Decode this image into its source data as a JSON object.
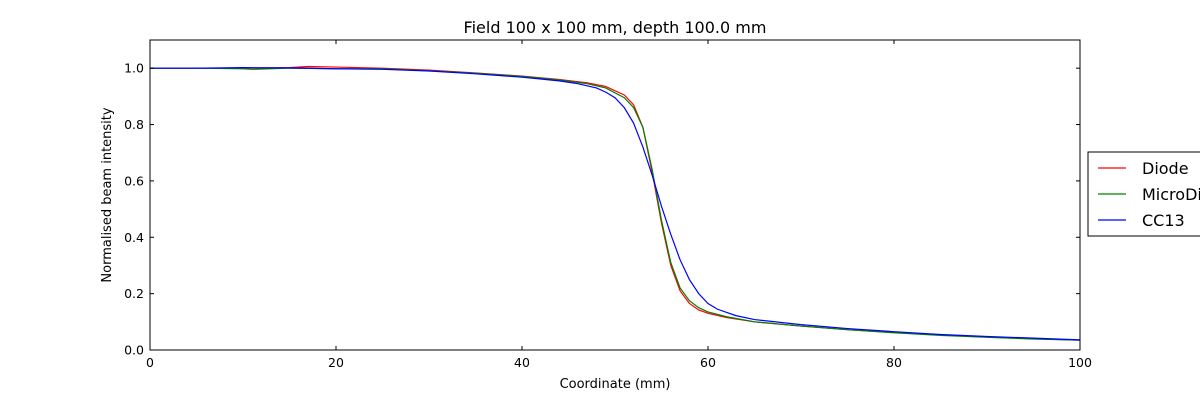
{
  "chart_data": {
    "type": "line",
    "title": "Field 100 x 100 mm, depth 100.0 mm",
    "xlabel": "Coordinate (mm)",
    "ylabel": "Normalised beam intensity",
    "xlim": [
      0,
      100
    ],
    "ylim": [
      0,
      1.1
    ],
    "xticks": [
      0,
      20,
      40,
      60,
      80,
      100
    ],
    "xtick_labels": [
      "0",
      "20",
      "40",
      "60",
      "80",
      "100"
    ],
    "yticks": [
      0.0,
      0.2,
      0.4,
      0.6,
      0.8,
      1.0
    ],
    "ytick_labels": [
      "0.0",
      "0.2",
      "0.4",
      "0.6",
      "0.8",
      "1.0"
    ],
    "grid": false,
    "legend_position": "right-outside",
    "series": [
      {
        "name": "Diode",
        "color": "#ff0000",
        "x": [
          0,
          5,
          10,
          15,
          17,
          20,
          25,
          30,
          35,
          40,
          44,
          47,
          49,
          51,
          52,
          53,
          54,
          55,
          56,
          57,
          58,
          59,
          60,
          62,
          65,
          70,
          75,
          80,
          85,
          90,
          95,
          100
        ],
        "y": [
          1.0,
          1.0,
          1.0,
          1.002,
          1.006,
          1.004,
          1.0,
          0.993,
          0.983,
          0.972,
          0.96,
          0.948,
          0.935,
          0.905,
          0.87,
          0.79,
          0.63,
          0.45,
          0.3,
          0.21,
          0.165,
          0.142,
          0.13,
          0.115,
          0.1,
          0.085,
          0.072,
          0.062,
          0.053,
          0.046,
          0.04,
          0.035
        ]
      },
      {
        "name": "MicroDiamond",
        "color": "#008000",
        "x": [
          0,
          5,
          10,
          11,
          15,
          20,
          25,
          30,
          35,
          40,
          44,
          47,
          49,
          51,
          52,
          53,
          54,
          55,
          56,
          57,
          58,
          59,
          60,
          62,
          65,
          70,
          75,
          80,
          85,
          90,
          95,
          100
        ],
        "y": [
          1.0,
          1.0,
          0.998,
          0.996,
          1.0,
          0.998,
          0.998,
          0.991,
          0.982,
          0.971,
          0.958,
          0.945,
          0.93,
          0.895,
          0.86,
          0.79,
          0.64,
          0.46,
          0.31,
          0.22,
          0.175,
          0.15,
          0.135,
          0.118,
          0.1,
          0.085,
          0.072,
          0.061,
          0.052,
          0.045,
          0.039,
          0.035
        ]
      },
      {
        "name": "CC13",
        "color": "#0000ff",
        "x": [
          0,
          5,
          10,
          15,
          20,
          25,
          30,
          35,
          40,
          44,
          46,
          48,
          49,
          50,
          51,
          52,
          53,
          54,
          55,
          56,
          57,
          58,
          59,
          60,
          61,
          63,
          65,
          70,
          75,
          80,
          85,
          90,
          95,
          100
        ],
        "y": [
          1.0,
          1.0,
          1.002,
          1.001,
          0.998,
          0.996,
          0.99,
          0.98,
          0.968,
          0.955,
          0.945,
          0.93,
          0.915,
          0.895,
          0.86,
          0.805,
          0.72,
          0.62,
          0.51,
          0.41,
          0.32,
          0.25,
          0.2,
          0.165,
          0.145,
          0.122,
          0.108,
          0.09,
          0.076,
          0.065,
          0.055,
          0.048,
          0.042,
          0.036
        ]
      }
    ]
  }
}
